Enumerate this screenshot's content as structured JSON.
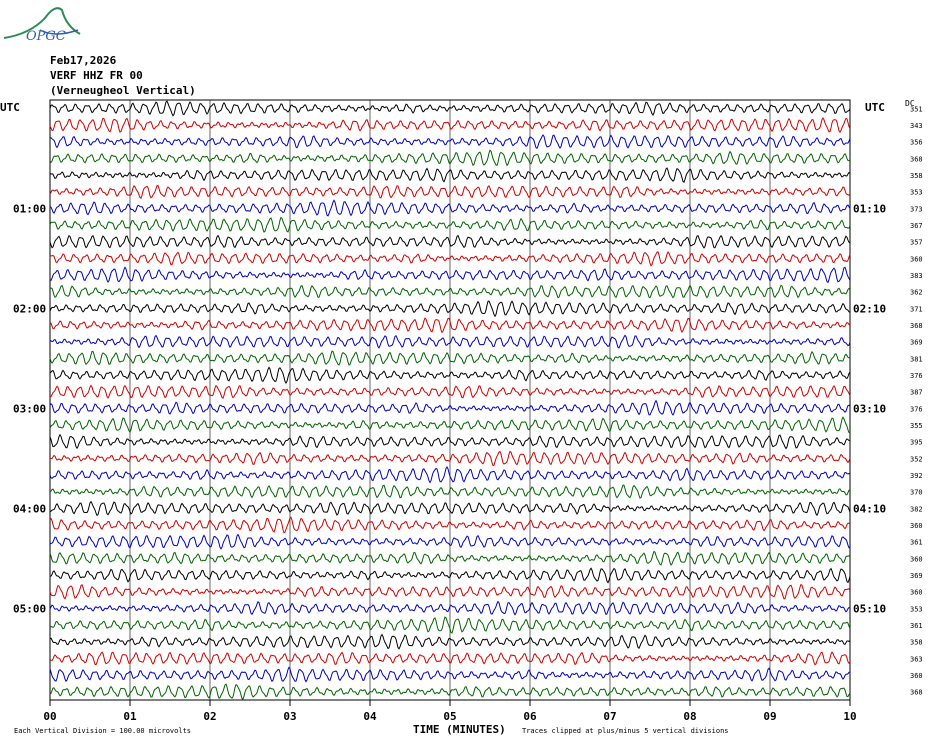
{
  "logo_text": "OPGC",
  "header": {
    "date": "Feb17,2026",
    "station": "VERF HHZ FR 00",
    "location": "(Verneugheol Vertical)"
  },
  "footer": {
    "division_note": "Each Vertical Division =  100.00 microvolts",
    "clip_note": "Traces clipped at plus/minus 5 vertical divisions"
  },
  "chart_data": {
    "type": "line",
    "title": "",
    "xlabel": "TIME (MINUTES)",
    "xlim": [
      0,
      10
    ],
    "x_ticks": [
      "00",
      "01",
      "02",
      "03",
      "04",
      "05",
      "06",
      "07",
      "08",
      "09",
      "10"
    ],
    "left_axis_label": "UTC",
    "right_axis_label": "UTC",
    "dc_label": "DC",
    "left_time_labels": [
      {
        "label": "01:00",
        "row": 6
      },
      {
        "label": "02:00",
        "row": 12
      },
      {
        "label": "03:00",
        "row": 18
      },
      {
        "label": "04:00",
        "row": 24
      },
      {
        "label": "05:00",
        "row": 30
      }
    ],
    "right_time_labels": [
      {
        "label": "01:10",
        "row": 6
      },
      {
        "label": "02:10",
        "row": 12
      },
      {
        "label": "03:10",
        "row": 18
      },
      {
        "label": "04:10",
        "row": 24
      },
      {
        "label": "05:10",
        "row": 30
      }
    ],
    "trace_colors": [
      "#000000",
      "#d00000",
      "#0000c0",
      "#006400"
    ],
    "dc_offsets": [
      "351",
      "343",
      "356",
      "368",
      "358",
      "353",
      "373",
      "367",
      "357",
      "360",
      "383",
      "362",
      "371",
      "368",
      "369",
      "381",
      "376",
      "387",
      "376",
      "355",
      "395",
      "352",
      "392",
      "370",
      "382",
      "360",
      "361",
      "360",
      "369",
      "360",
      "353",
      "361",
      "358",
      "363",
      "360",
      "368"
    ]
  },
  "colors": {
    "grid": "#000000",
    "background": "#ffffff"
  }
}
